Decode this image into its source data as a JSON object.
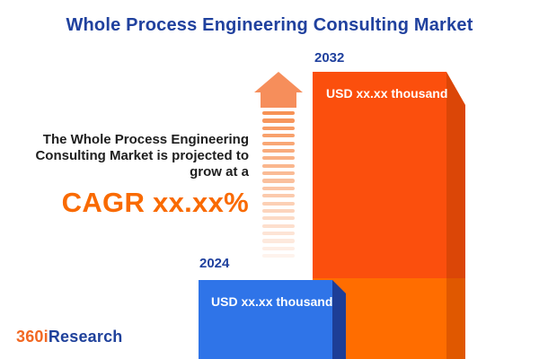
{
  "title": "Whole Process Engineering Consulting Market",
  "promo": {
    "line1": "The Whole Process Engineering",
    "line2": "Consulting Market is projected to",
    "line3": "grow at a",
    "cagr": "CAGR xx.xx%"
  },
  "chart": {
    "bars": [
      {
        "year": "2024",
        "value_label": "USD xx.xx thousand",
        "front_color": "#2F74E8",
        "side_color": "#1D3E97"
      },
      {
        "year": "2032",
        "value_label": "USD xx.xx thousand",
        "front_color": "#FB4F0D",
        "side_color": "#DB4607",
        "lower_front_color": "#FF6D00",
        "lower_side_color": "#E05800"
      }
    ]
  },
  "arrow": {
    "icon": "growth-arrow-icon",
    "head_color": "#F68E5B",
    "stripe_color": "#F79255",
    "stripe_count": 20
  },
  "logo": {
    "prefix": "360i",
    "suffix": "Research",
    "prefix_color": "#F26822",
    "suffix_color": "#1F419B"
  },
  "colors": {
    "title_blue": "#20419E",
    "cagr_orange": "#F96A00",
    "body_text": "#1E1E1E",
    "background": "#FFFFFF"
  },
  "chart_data": {
    "type": "bar",
    "categories": [
      "2024",
      "2032"
    ],
    "values": [
      "xx.xx",
      "xx.xx"
    ],
    "value_unit": "USD thousand",
    "value_labels": [
      "USD xx.xx thousand",
      "USD xx.xx thousand"
    ],
    "title": "Whole Process Engineering Consulting Market",
    "annotation": "The Whole Process Engineering Consulting Market is projected to grow at a CAGR xx.xx%",
    "legend": false,
    "bar_colors": [
      "#2F74E8",
      "#FB4F0D"
    ]
  }
}
